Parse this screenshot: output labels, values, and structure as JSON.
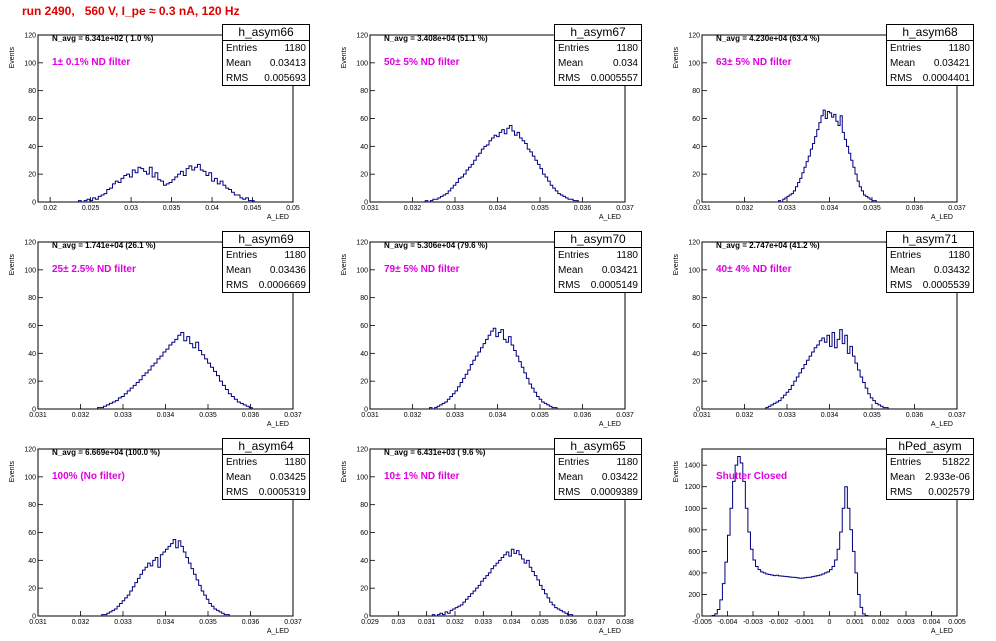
{
  "header": {
    "run_title": "run 2490,   560 V, I_pe ≈ 0.3 nA, 120 Hz"
  },
  "chart_data": [
    {
      "type": "histogram",
      "hist_name": "h_asym66",
      "entries": "1180",
      "mean": "0.03413",
      "rms": "0.005693",
      "navg": "N_avg = 6.341e+02 ( 1.0 %)",
      "filter": "1± 0.1% ND filter",
      "ylabel": "Events",
      "xlabel": "A_LED",
      "xlim": [
        0.0185,
        0.05
      ],
      "ylim": [
        0,
        120
      ],
      "xticks": [
        0.02,
        0.025,
        0.03,
        0.035,
        0.04,
        0.045,
        0.05
      ],
      "xtick_labels": [
        "0.02",
        "0.025",
        "0.03",
        "0.035",
        "0.04",
        "0.045",
        "0.05"
      ],
      "yticks": [
        0,
        20,
        40,
        60,
        80,
        100,
        120
      ],
      "ytick_labels": [
        "0",
        "20",
        "40",
        "60",
        "80",
        "100",
        "120"
      ],
      "bin_edges_start": 0.0235,
      "bin_width": 0.00035,
      "values": [
        1,
        0,
        1,
        2,
        1,
        3,
        2,
        4,
        5,
        6,
        9,
        10,
        13,
        15,
        14,
        17,
        19,
        20,
        18,
        23,
        21,
        25,
        24,
        22,
        20,
        25,
        18,
        21,
        16,
        15,
        12,
        13,
        14,
        16,
        18,
        20,
        22,
        19,
        24,
        26,
        23,
        25,
        27,
        23,
        22,
        19,
        21,
        15,
        17,
        13,
        15,
        12,
        10,
        9,
        7,
        5,
        5,
        3,
        2,
        3,
        1,
        1
      ]
    },
    {
      "type": "histogram",
      "hist_name": "h_asym67",
      "entries": "1180",
      "mean": "0.034",
      "rms": "0.0005557",
      "navg": "N_avg = 3.408e+04 (51.1 %)",
      "filter": "50± 5% ND filter",
      "ylabel": "Events",
      "xlabel": "A_LED",
      "xlim": [
        0.031,
        0.037
      ],
      "ylim": [
        0,
        120
      ],
      "xticks": [
        0.031,
        0.032,
        0.033,
        0.034,
        0.035,
        0.036,
        0.037
      ],
      "xtick_labels": [
        "0.031",
        "0.032",
        "0.033",
        "0.034",
        "0.035",
        "0.036",
        "0.037"
      ],
      "yticks": [
        0,
        20,
        40,
        60,
        80,
        100,
        120
      ],
      "ytick_labels": [
        "0",
        "20",
        "40",
        "60",
        "80",
        "100",
        "120"
      ],
      "bin_edges_start": 0.0323,
      "bin_width": 6e-05,
      "values": [
        1,
        0,
        1,
        2,
        2,
        3,
        4,
        5,
        6,
        8,
        10,
        12,
        14,
        17,
        18,
        20,
        23,
        25,
        27,
        30,
        33,
        35,
        38,
        40,
        41,
        44,
        46,
        48,
        47,
        50,
        52,
        49,
        53,
        55,
        51,
        48,
        50,
        46,
        44,
        42,
        38,
        36,
        33,
        30,
        27,
        24,
        20,
        18,
        15,
        12,
        10,
        8,
        6,
        5,
        4,
        3,
        2,
        2,
        1,
        1
      ]
    },
    {
      "type": "histogram",
      "hist_name": "h_asym68",
      "entries": "1180",
      "mean": "0.03421",
      "rms": "0.0004401",
      "navg": "N_avg = 4.230e+04 (63.4 %)",
      "filter": "63± 5% ND filter",
      "ylabel": "Events",
      "xlabel": "A_LED",
      "xlim": [
        0.031,
        0.037
      ],
      "ylim": [
        0,
        120
      ],
      "xticks": [
        0.031,
        0.032,
        0.033,
        0.034,
        0.035,
        0.036,
        0.037
      ],
      "xtick_labels": [
        "0.031",
        "0.032",
        "0.033",
        "0.034",
        "0.035",
        "0.036",
        "0.037"
      ],
      "yticks": [
        0,
        20,
        40,
        60,
        80,
        100,
        120
      ],
      "ytick_labels": [
        "0",
        "20",
        "40",
        "60",
        "80",
        "100",
        "120"
      ],
      "bin_edges_start": 0.0328,
      "bin_width": 5e-05,
      "values": [
        1,
        0,
        2,
        3,
        4,
        5,
        6,
        8,
        11,
        14,
        17,
        21,
        25,
        29,
        33,
        38,
        42,
        47,
        52,
        57,
        62,
        66,
        60,
        65,
        64,
        61,
        63,
        58,
        55,
        62,
        50,
        45,
        40,
        35,
        30,
        25,
        20,
        15,
        11,
        8,
        5,
        4,
        3,
        2,
        1,
        1
      ]
    },
    {
      "type": "histogram",
      "hist_name": "h_asym69",
      "entries": "1180",
      "mean": "0.03436",
      "rms": "0.0006669",
      "navg": "N_avg = 1.741e+04 (26.1 %)",
      "filter": "25± 2.5% ND filter",
      "ylabel": "Events",
      "xlabel": "A_LED",
      "xlim": [
        0.031,
        0.037
      ],
      "ylim": [
        0,
        120
      ],
      "xticks": [
        0.031,
        0.032,
        0.033,
        0.034,
        0.035,
        0.036,
        0.037
      ],
      "xtick_labels": [
        "0.031",
        "0.032",
        "0.033",
        "0.034",
        "0.035",
        "0.036",
        "0.037"
      ],
      "yticks": [
        0,
        20,
        40,
        60,
        80,
        100,
        120
      ],
      "ytick_labels": [
        "0",
        "20",
        "40",
        "60",
        "80",
        "100",
        "120"
      ],
      "bin_edges_start": 0.0324,
      "bin_width": 7e-05,
      "values": [
        1,
        1,
        2,
        3,
        4,
        5,
        6,
        8,
        9,
        11,
        13,
        15,
        17,
        19,
        21,
        24,
        26,
        28,
        31,
        33,
        36,
        38,
        41,
        43,
        46,
        48,
        50,
        53,
        55,
        49,
        52,
        47,
        44,
        48,
        42,
        39,
        36,
        33,
        30,
        27,
        24,
        20,
        17,
        14,
        11,
        9,
        7,
        5,
        4,
        3,
        2,
        1
      ]
    },
    {
      "type": "histogram",
      "hist_name": "h_asym70",
      "entries": "1180",
      "mean": "0.03421",
      "rms": "0.0005149",
      "navg": "N_avg = 5.306e+04 (79.6 %)",
      "filter": "79± 5% ND filter",
      "ylabel": "Events",
      "xlabel": "A_LED",
      "xlim": [
        0.031,
        0.037
      ],
      "ylim": [
        0,
        120
      ],
      "xticks": [
        0.031,
        0.032,
        0.033,
        0.034,
        0.035,
        0.036,
        0.037
      ],
      "xtick_labels": [
        "0.031",
        "0.032",
        "0.033",
        "0.034",
        "0.035",
        "0.036",
        "0.037"
      ],
      "yticks": [
        0,
        20,
        40,
        60,
        80,
        100,
        120
      ],
      "ytick_labels": [
        "0",
        "20",
        "40",
        "60",
        "80",
        "100",
        "120"
      ],
      "bin_edges_start": 0.0324,
      "bin_width": 6e-05,
      "values": [
        1,
        0,
        1,
        2,
        3,
        4,
        5,
        7,
        9,
        11,
        13,
        16,
        19,
        22,
        25,
        28,
        32,
        35,
        38,
        41,
        44,
        47,
        50,
        53,
        56,
        58,
        52,
        55,
        57,
        50,
        48,
        52,
        46,
        42,
        38,
        34,
        30,
        26,
        22,
        18,
        15,
        12,
        9,
        7,
        5,
        4,
        3,
        2,
        1,
        1
      ]
    },
    {
      "type": "histogram",
      "hist_name": "h_asym71",
      "entries": "1180",
      "mean": "0.03432",
      "rms": "0.0005539",
      "navg": "N_avg = 2.747e+04 (41.2 %)",
      "filter": "40± 4% ND filter",
      "ylabel": "Events",
      "xlabel": "A_LED",
      "xlim": [
        0.031,
        0.037
      ],
      "ylim": [
        0,
        120
      ],
      "xticks": [
        0.031,
        0.032,
        0.033,
        0.034,
        0.035,
        0.036,
        0.037
      ],
      "xtick_labels": [
        "0.031",
        "0.032",
        "0.033",
        "0.034",
        "0.035",
        "0.036",
        "0.037"
      ],
      "yticks": [
        0,
        20,
        40,
        60,
        80,
        100,
        120
      ],
      "ytick_labels": [
        "0",
        "20",
        "40",
        "60",
        "80",
        "100",
        "120"
      ],
      "bin_edges_start": 0.0325,
      "bin_width": 6e-05,
      "values": [
        1,
        2,
        3,
        4,
        5,
        6,
        8,
        10,
        12,
        14,
        17,
        20,
        23,
        26,
        29,
        32,
        35,
        38,
        41,
        44,
        46,
        49,
        51,
        48,
        53,
        45,
        55,
        44,
        50,
        57,
        47,
        53,
        40,
        45,
        38,
        33,
        28,
        23,
        19,
        15,
        11,
        8,
        6,
        4,
        3,
        2,
        1,
        1
      ]
    },
    {
      "type": "histogram",
      "hist_name": "h_asym64",
      "entries": "1180",
      "mean": "0.03425",
      "rms": "0.0005319",
      "navg": "N_avg = 6.669e+04 (100.0 %)",
      "filter": "100% (No filter)",
      "ylabel": "Events",
      "xlabel": "A_LED",
      "xlim": [
        0.031,
        0.037
      ],
      "ylim": [
        0,
        120
      ],
      "xticks": [
        0.031,
        0.032,
        0.033,
        0.034,
        0.035,
        0.036,
        0.037
      ],
      "xtick_labels": [
        "0.031",
        "0.032",
        "0.033",
        "0.034",
        "0.035",
        "0.036",
        "0.037"
      ],
      "yticks": [
        0,
        20,
        40,
        60,
        80,
        100,
        120
      ],
      "ytick_labels": [
        "0",
        "20",
        "40",
        "60",
        "80",
        "100",
        "120"
      ],
      "bin_edges_start": 0.0325,
      "bin_width": 6e-05,
      "values": [
        1,
        1,
        2,
        3,
        4,
        5,
        7,
        9,
        11,
        13,
        15,
        18,
        21,
        24,
        27,
        30,
        33,
        35,
        38,
        36,
        40,
        42,
        35,
        44,
        46,
        48,
        50,
        52,
        55,
        49,
        54,
        50,
        46,
        42,
        38,
        34,
        30,
        26,
        22,
        18,
        15,
        12,
        9,
        7,
        5,
        4,
        3,
        2,
        1,
        1
      ]
    },
    {
      "type": "histogram",
      "hist_name": "h_asym65",
      "entries": "1180",
      "mean": "0.03422",
      "rms": "0.0009389",
      "navg": "N_avg = 6.431e+03 ( 9.6 %)",
      "filter": "10± 1% ND filter",
      "ylabel": "Events",
      "xlabel": "A_LED",
      "xlim": [
        0.029,
        0.038
      ],
      "ylim": [
        0,
        120
      ],
      "xticks": [
        0.029,
        0.03,
        0.031,
        0.032,
        0.033,
        0.034,
        0.035,
        0.036,
        0.037,
        0.038
      ],
      "xtick_labels": [
        "0.029",
        "0.03",
        "0.031",
        "0.032",
        "0.033",
        "0.034",
        "0.035",
        "0.036",
        "0.037",
        "0.038"
      ],
      "yticks": [
        0,
        20,
        40,
        60,
        80,
        100,
        120
      ],
      "ytick_labels": [
        "0",
        "20",
        "40",
        "60",
        "80",
        "100",
        "120"
      ],
      "bin_edges_start": 0.0312,
      "bin_width": 9e-05,
      "values": [
        1,
        0,
        1,
        2,
        1,
        3,
        2,
        4,
        5,
        6,
        7,
        8,
        10,
        12,
        14,
        16,
        18,
        20,
        22,
        25,
        27,
        29,
        31,
        34,
        36,
        38,
        40,
        42,
        44,
        46,
        43,
        48,
        45,
        47,
        44,
        41,
        38,
        40,
        35,
        32,
        29,
        26,
        22,
        19,
        16,
        13,
        10,
        8,
        6,
        5,
        4,
        3,
        2,
        1,
        1
      ]
    },
    {
      "type": "histogram",
      "hist_name": "hPed_asym",
      "entries": "51822",
      "mean": "2.933e-06",
      "rms": "0.002579",
      "navg": "",
      "filter": "Shutter Closed",
      "ylabel": "Events",
      "xlabel": "A_LED",
      "xlim": [
        -0.005,
        0.005
      ],
      "ylim": [
        0,
        1550
      ],
      "xticks": [
        -0.005,
        -0.004,
        -0.003,
        -0.002,
        -0.001,
        0,
        0.001,
        0.002,
        0.003,
        0.004,
        0.005
      ],
      "xtick_labels": [
        "-0.005",
        "-0.004",
        "-0.003",
        "-0.002",
        "-0.001",
        "0",
        "0.001",
        "0.002",
        "0.003",
        "0.004",
        "0.005"
      ],
      "yticks": [
        0,
        200,
        400,
        600,
        800,
        1000,
        1200,
        1400
      ],
      "ytick_labels": [
        "0",
        "200",
        "400",
        "600",
        "800",
        "1000",
        "1200",
        "1400"
      ],
      "bin_edges_start": -0.0046,
      "bin_width": 0.0001,
      "values": [
        5,
        20,
        60,
        150,
        300,
        500,
        750,
        1000,
        1250,
        1400,
        1480,
        1420,
        1250,
        1000,
        780,
        620,
        520,
        460,
        430,
        410,
        400,
        390,
        385,
        380,
        375,
        378,
        372,
        370,
        368,
        365,
        362,
        360,
        358,
        355,
        350,
        352,
        355,
        358,
        360,
        365,
        370,
        375,
        380,
        390,
        400,
        410,
        430,
        460,
        520,
        620,
        780,
        1000,
        1200,
        1000,
        800,
        600,
        400,
        200,
        80,
        20,
        5
      ]
    }
  ]
}
